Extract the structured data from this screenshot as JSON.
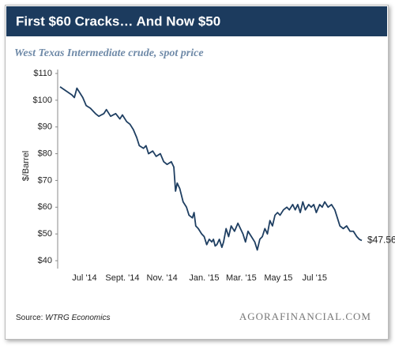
{
  "chart_data": {
    "type": "line",
    "title": "First $60 Cracks… And Now $50",
    "subtitle": "West Texas Intermediate crude, spot price",
    "y_label": "$/Barrel",
    "source": "Source:",
    "source_name": "WTRG Economics",
    "watermark": "AGORAFINANCIAL.COM",
    "xlim": [
      0,
      358
    ],
    "xticks": [
      {
        "value": 29,
        "label": "Jul '14"
      },
      {
        "value": 74,
        "label": "Sept. '14"
      },
      {
        "value": 121,
        "label": "Nov. '14"
      },
      {
        "value": 171,
        "label": "Jan. '15"
      },
      {
        "value": 215,
        "label": "Mar. '15"
      },
      {
        "value": 259,
        "label": "May 15"
      },
      {
        "value": 302,
        "label": "Jul '15"
      }
    ],
    "ylim": [
      40,
      110
    ],
    "yticks": [
      {
        "value": 40,
        "label": "$40"
      },
      {
        "value": 50,
        "label": "$50"
      },
      {
        "value": 60,
        "label": "$60"
      },
      {
        "value": 70,
        "label": "$70"
      },
      {
        "value": 80,
        "label": "$80"
      },
      {
        "value": 90,
        "label": "$90"
      },
      {
        "value": 100,
        "label": "$100"
      },
      {
        "value": 110,
        "label": "$110"
      }
    ],
    "series": [
      {
        "color": "#1f3f62",
        "x": [
          0,
          14,
          17,
          20,
          27,
          31,
          36,
          42,
          46,
          52,
          55,
          60,
          66,
          71,
          74,
          79,
          83,
          87,
          91,
          94,
          99,
          102,
          105,
          110,
          114,
          119,
          123,
          127,
          132,
          135,
          137,
          139,
          142,
          146,
          150,
          153,
          157,
          159,
          161,
          164,
          168,
          171,
          174,
          177,
          180,
          182,
          184,
          186,
          189,
          192,
          194,
          197,
          200,
          203,
          207,
          211,
          214,
          217,
          220,
          223,
          227,
          231,
          234,
          237,
          240,
          243,
          246,
          249,
          252,
          255,
          258,
          261,
          265,
          269,
          272,
          276,
          279,
          282,
          285,
          288,
          291,
          295,
          298,
          301,
          304,
          308,
          311,
          314,
          318,
          322,
          326,
          329,
          332,
          336,
          340,
          344,
          348,
          352,
          355,
          358
        ],
        "values": [
          105,
          102,
          101,
          104.5,
          101,
          98,
          97,
          95,
          94,
          95,
          96.5,
          94,
          95,
          93,
          94.5,
          92,
          91,
          89,
          86,
          83,
          82,
          83,
          80,
          81,
          79,
          80,
          77,
          76,
          77,
          75,
          66,
          69,
          67,
          62,
          60,
          57,
          56,
          58,
          53,
          52,
          50,
          49,
          46,
          48,
          47,
          48,
          45.5,
          46,
          48,
          45,
          47,
          52,
          49,
          53,
          51,
          54,
          52,
          50,
          47,
          51,
          49,
          47,
          44,
          48,
          49,
          52,
          50,
          55,
          53,
          57,
          58,
          57,
          59,
          60,
          59,
          61,
          59,
          61,
          58,
          62,
          59,
          61,
          60,
          61,
          58,
          61,
          60,
          62,
          60,
          61,
          59,
          56,
          53,
          52,
          53,
          51,
          51,
          49,
          48,
          47.56
        ],
        "value_labels": [
          null,
          null,
          null,
          null,
          null,
          null,
          null,
          null,
          null,
          null,
          null,
          null,
          null,
          null,
          null,
          null,
          null,
          null,
          null,
          null,
          null,
          null,
          null,
          null,
          null,
          null,
          null,
          null,
          null,
          null,
          null,
          null,
          null,
          null,
          null,
          null,
          null,
          null,
          null,
          null,
          null,
          null,
          null,
          null,
          null,
          null,
          null,
          null,
          null,
          null,
          null,
          null,
          null,
          null,
          null,
          null,
          null,
          null,
          null,
          null,
          null,
          null,
          null,
          null,
          null,
          null,
          null,
          null,
          null,
          null,
          null,
          null,
          null,
          null,
          null,
          null,
          null,
          null,
          null,
          null,
          null,
          null,
          null,
          null,
          null,
          null,
          null,
          null,
          null,
          null,
          null,
          null,
          null,
          null,
          null,
          null,
          null,
          null,
          null,
          "$47.56"
        ]
      }
    ]
  }
}
